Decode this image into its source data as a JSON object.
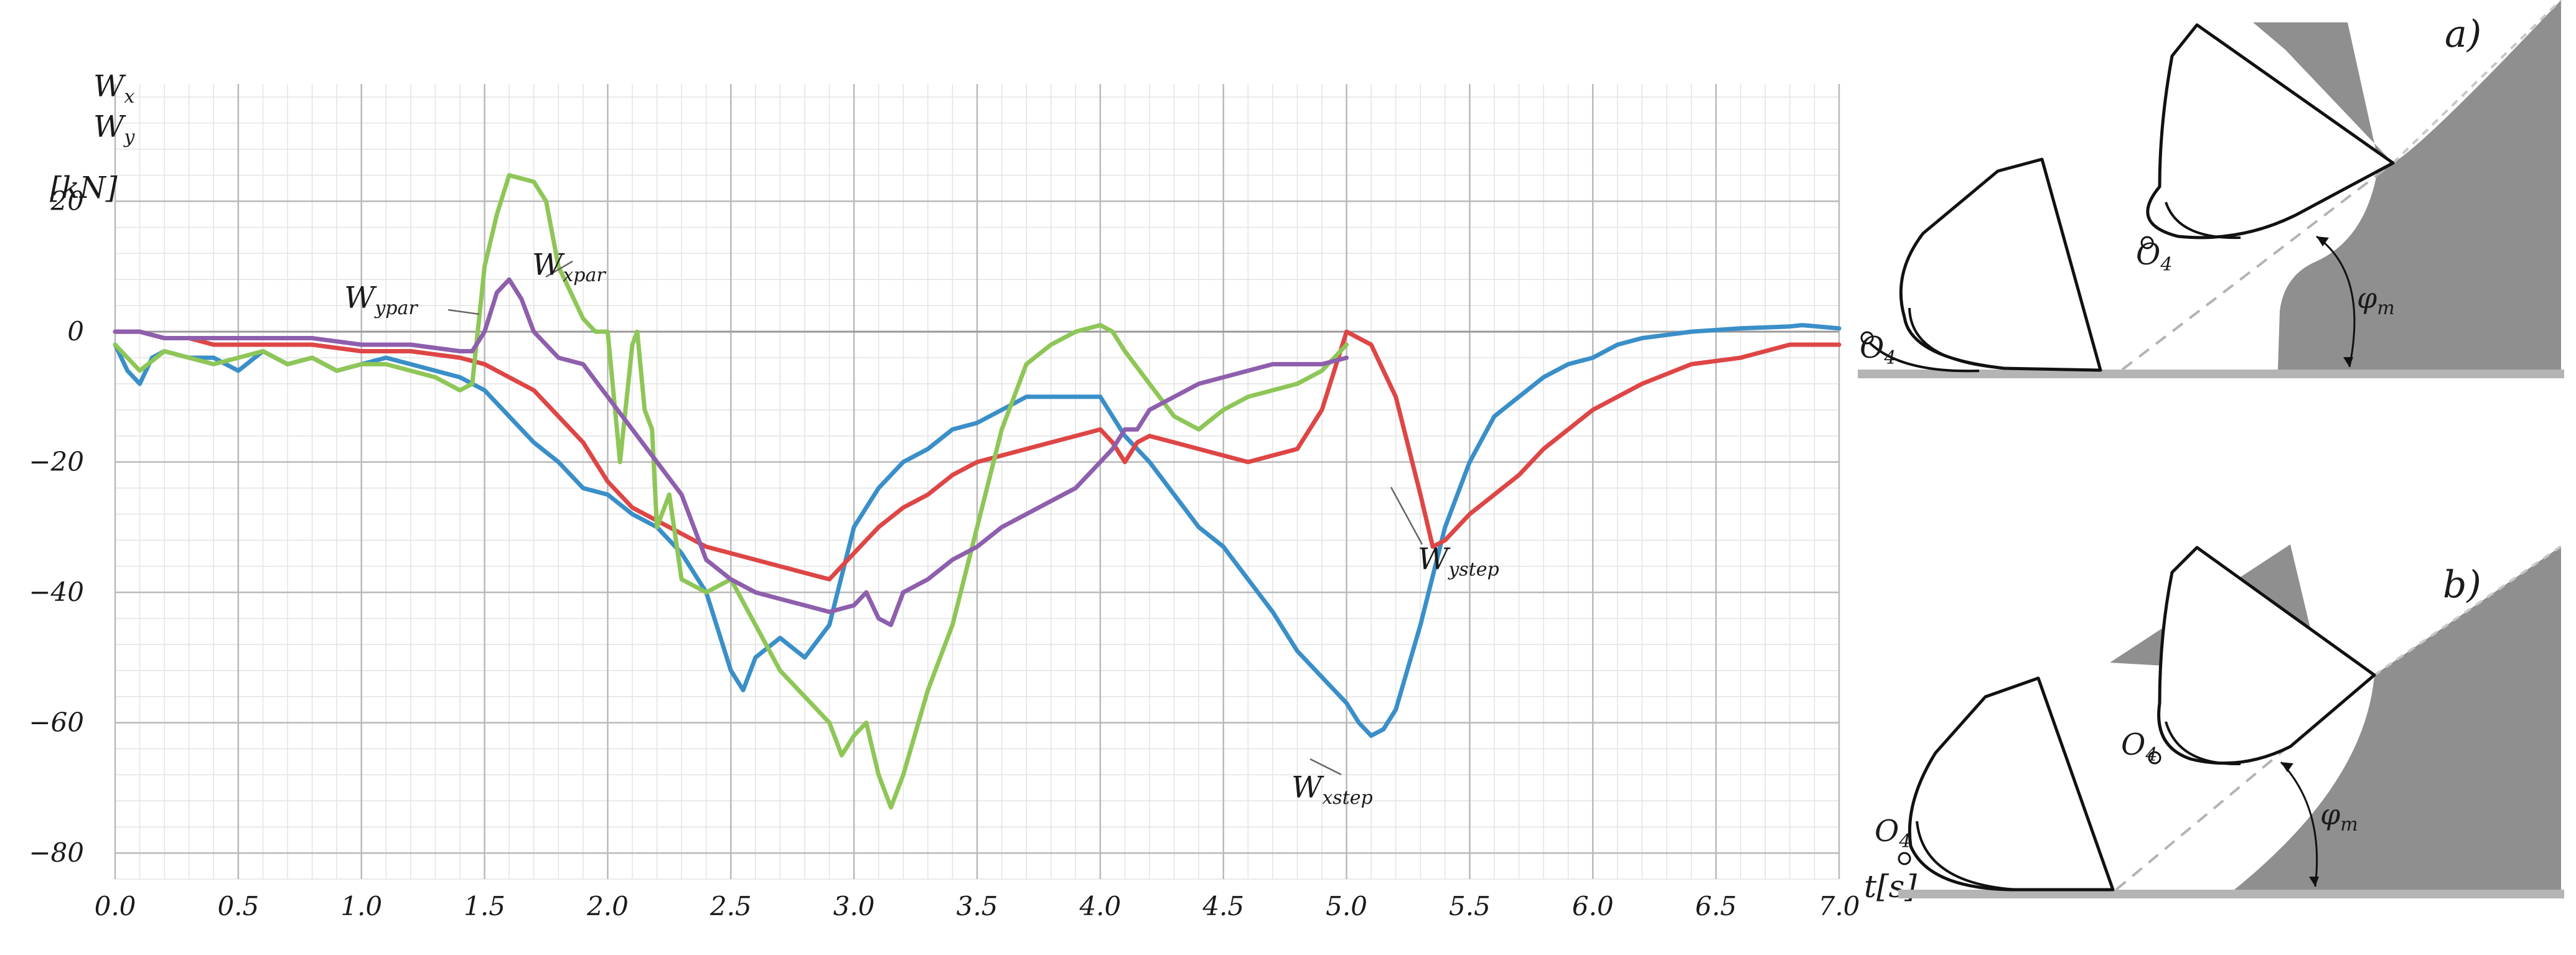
{
  "chart_data": [
    {
      "type": "line",
      "title": "",
      "ylabel_lines": [
        "W",
        "W",
        "[kN]"
      ],
      "ylabel_subs": [
        "x",
        "y",
        ""
      ],
      "xlabel": "t[s]",
      "xlim": [
        0,
        7
      ],
      "ylim": [
        -84,
        38
      ],
      "x_ticks": [
        "0.0",
        "0.5",
        "1.0",
        "1.5",
        "2.0",
        "2.5",
        "3.0",
        "3.5",
        "4.0",
        "4.5",
        "5.0",
        "5.5",
        "6.0",
        "6.5",
        "7.0"
      ],
      "y_ticks": [
        20,
        0,
        -20,
        -40,
        -60,
        -80
      ],
      "y_tick_labels": [
        "20",
        "0",
        "−20",
        "−40",
        "−60",
        "−80"
      ],
      "grid": true,
      "series": [
        {
          "name": "W xstep",
          "color": "#3a8fc8",
          "label_text": "W",
          "label_sub": "xstep",
          "x": [
            0,
            0.05,
            0.1,
            0.15,
            0.2,
            0.3,
            0.4,
            0.5,
            0.6,
            0.7,
            0.8,
            0.9,
            1.0,
            1.1,
            1.2,
            1.3,
            1.4,
            1.5,
            1.6,
            1.7,
            1.8,
            1.9,
            2.0,
            2.1,
            2.2,
            2.3,
            2.4,
            2.5,
            2.55,
            2.6,
            2.7,
            2.8,
            2.9,
            3.0,
            3.1,
            3.2,
            3.3,
            3.4,
            3.5,
            3.6,
            3.7,
            3.8,
            3.9,
            4.0,
            4.05,
            4.1,
            4.2,
            4.3,
            4.4,
            4.5,
            4.6,
            4.7,
            4.8,
            4.9,
            5.0,
            5.05,
            5.1,
            5.15,
            5.2,
            5.3,
            5.4,
            5.5,
            5.6,
            5.7,
            5.8,
            5.9,
            6.0,
            6.1,
            6.2,
            6.4,
            6.6,
            6.8,
            6.85,
            7.0
          ],
          "y": [
            -2,
            -6,
            -8,
            -4,
            -3,
            -4,
            -4,
            -6,
            -3,
            -5,
            -4,
            -6,
            -5,
            -4,
            -5,
            -6,
            -7,
            -9,
            -13,
            -17,
            -20,
            -24,
            -25,
            -28,
            -30,
            -34,
            -40,
            -52,
            -55,
            -50,
            -47,
            -50,
            -45,
            -30,
            -24,
            -20,
            -18,
            -15,
            -14,
            -12,
            -10,
            -10,
            -10,
            -10,
            -13,
            -16,
            -20,
            -25,
            -30,
            -33,
            -38,
            -43,
            -49,
            -53,
            -57,
            -60,
            -62,
            -61,
            -58,
            -45,
            -30,
            -20,
            -13,
            -10,
            -7,
            -5,
            -4,
            -2,
            -1,
            0,
            0.5,
            0.8,
            1,
            0.5
          ]
        },
        {
          "name": "W ystep",
          "color": "#de4646",
          "label_text": "W",
          "label_sub": "ystep",
          "x": [
            0,
            0.1,
            0.2,
            0.3,
            0.4,
            0.6,
            0.8,
            1.0,
            1.2,
            1.4,
            1.5,
            1.6,
            1.7,
            1.8,
            1.9,
            2.0,
            2.1,
            2.2,
            2.3,
            2.4,
            2.5,
            2.6,
            2.7,
            2.8,
            2.9,
            3.0,
            3.1,
            3.2,
            3.3,
            3.4,
            3.5,
            3.6,
            3.7,
            3.8,
            3.9,
            4.0,
            4.05,
            4.1,
            4.15,
            4.2,
            4.3,
            4.4,
            4.5,
            4.6,
            4.7,
            4.8,
            4.9,
            5.0,
            5.1,
            5.2,
            5.3,
            5.35,
            5.4,
            5.5,
            5.6,
            5.7,
            5.8,
            5.9,
            6.0,
            6.2,
            6.4,
            6.6,
            6.8,
            7.0
          ],
          "y": [
            0,
            0,
            -1,
            -1,
            -2,
            -2,
            -2,
            -3,
            -3,
            -4,
            -5,
            -7,
            -9,
            -13,
            -17,
            -23,
            -27,
            -29,
            -31,
            -33,
            -34,
            -35,
            -36,
            -37,
            -38,
            -34,
            -30,
            -27,
            -25,
            -22,
            -20,
            -19,
            -18,
            -17,
            -16,
            -15,
            -17,
            -20,
            -17,
            -16,
            -17,
            -18,
            -19,
            -20,
            -19,
            -18,
            -12,
            0,
            -2,
            -10,
            -25,
            -33,
            -32,
            -28,
            -25,
            -22,
            -18,
            -15,
            -12,
            -8,
            -5,
            -4,
            -2,
            -2
          ]
        },
        {
          "name": "W xpar",
          "color": "#8ec657",
          "label_text": "W",
          "label_sub": "xpar",
          "x": [
            0,
            0.05,
            0.1,
            0.2,
            0.3,
            0.4,
            0.5,
            0.6,
            0.7,
            0.8,
            0.9,
            1.0,
            1.1,
            1.2,
            1.3,
            1.4,
            1.45,
            1.5,
            1.55,
            1.6,
            1.7,
            1.75,
            1.8,
            1.9,
            1.95,
            2.0,
            2.05,
            2.1,
            2.12,
            2.15,
            2.18,
            2.2,
            2.25,
            2.3,
            2.4,
            2.5,
            2.6,
            2.7,
            2.8,
            2.9,
            2.95,
            3.0,
            3.05,
            3.1,
            3.15,
            3.2,
            3.3,
            3.4,
            3.5,
            3.6,
            3.7,
            3.8,
            3.9,
            4.0,
            4.05,
            4.1,
            4.2,
            4.3,
            4.4,
            4.5,
            4.6,
            4.7,
            4.8,
            4.9,
            5.0
          ],
          "y": [
            -2,
            -4,
            -6,
            -3,
            -4,
            -5,
            -4,
            -3,
            -5,
            -4,
            -6,
            -5,
            -5,
            -6,
            -7,
            -9,
            -8,
            10,
            18,
            24,
            23,
            20,
            10,
            2,
            0,
            0,
            -20,
            -2,
            0,
            -12,
            -15,
            -30,
            -25,
            -38,
            -40,
            -38,
            -45,
            -52,
            -56,
            -60,
            -65,
            -62,
            -60,
            -68,
            -73,
            -68,
            -55,
            -45,
            -30,
            -15,
            -5,
            -2,
            0,
            1,
            0,
            -3,
            -8,
            -13,
            -15,
            -12,
            -10,
            -9,
            -8,
            -6,
            -2
          ]
        },
        {
          "name": "W ypar",
          "color": "#8e5fad",
          "label_text": "W",
          "label_sub": "ypar",
          "x": [
            0,
            0.1,
            0.2,
            0.3,
            0.4,
            0.6,
            0.8,
            1.0,
            1.2,
            1.4,
            1.45,
            1.5,
            1.55,
            1.6,
            1.65,
            1.7,
            1.75,
            1.8,
            1.9,
            2.0,
            2.1,
            2.2,
            2.3,
            2.4,
            2.5,
            2.6,
            2.7,
            2.8,
            2.9,
            3.0,
            3.05,
            3.1,
            3.15,
            3.2,
            3.3,
            3.4,
            3.5,
            3.6,
            3.7,
            3.8,
            3.9,
            4.0,
            4.05,
            4.1,
            4.15,
            4.2,
            4.3,
            4.4,
            4.5,
            4.6,
            4.7,
            4.8,
            4.9,
            5.0
          ],
          "y": [
            0,
            0,
            -1,
            -1,
            -1,
            -1,
            -1,
            -2,
            -2,
            -3,
            -3,
            0,
            6,
            8,
            5,
            0,
            -2,
            -4,
            -5,
            -10,
            -15,
            -20,
            -25,
            -35,
            -38,
            -40,
            -41,
            -42,
            -43,
            -42,
            -40,
            -44,
            -45,
            -40,
            -38,
            -35,
            -33,
            -30,
            -28,
            -26,
            -24,
            -20,
            -18,
            -15,
            -15,
            -12,
            -10,
            -8,
            -7,
            -6,
            -5,
            -5,
            -5,
            -4
          ]
        }
      ]
    },
    {
      "type": "diagram",
      "panels": [
        {
          "label": "a)",
          "point_label": "O",
          "point_sub": "4",
          "angle_label": "φ",
          "angle_sub": "m"
        },
        {
          "label": "b)",
          "point_label": "O",
          "point_sub": "4",
          "angle_label": "φ",
          "angle_sub": "m"
        }
      ]
    }
  ]
}
